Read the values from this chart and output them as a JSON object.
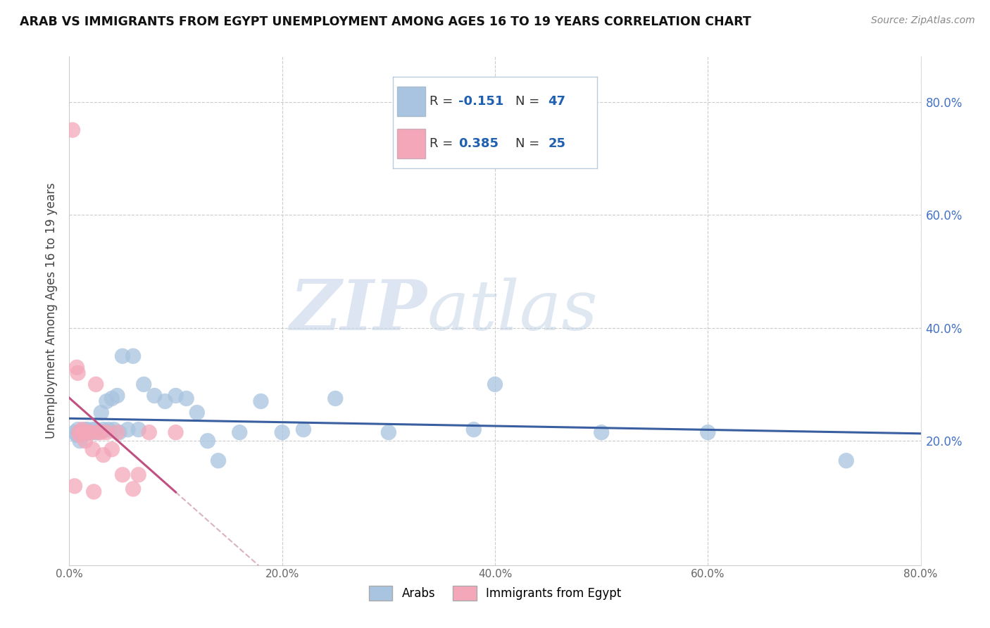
{
  "title": "ARAB VS IMMIGRANTS FROM EGYPT UNEMPLOYMENT AMONG AGES 16 TO 19 YEARS CORRELATION CHART",
  "source": "Source: ZipAtlas.com",
  "ylabel": "Unemployment Among Ages 16 to 19 years",
  "xlim": [
    0.0,
    0.8
  ],
  "ylim": [
    -0.02,
    0.88
  ],
  "xticks": [
    0.0,
    0.2,
    0.4,
    0.6,
    0.8
  ],
  "yticks": [
    0.2,
    0.4,
    0.6,
    0.8
  ],
  "xticklabels": [
    "0.0%",
    "20.0%",
    "40.0%",
    "60.0%",
    "80.0%"
  ],
  "yticklabels": [
    "20.0%",
    "40.0%",
    "60.0%",
    "80.0%"
  ],
  "arab_color": "#a8c4e0",
  "egypt_color": "#f4a7b9",
  "arab_line_color": "#3a5fa0",
  "egypt_line_color": "#c05080",
  "egypt_line_dashed_color": "#d0a0b0",
  "watermark_zip": "ZIP",
  "watermark_atlas": "atlas",
  "watermark_color": "#ccd9e8",
  "background_color": "#ffffff",
  "grid_color": "#cccccc",
  "legend_box_color": "#f0f4f8",
  "legend_border_color": "#bbccdd",
  "tick_color": "#4472c4",
  "arab_x": [
    0.005,
    0.007,
    0.008,
    0.009,
    0.01,
    0.012,
    0.013,
    0.015,
    0.015,
    0.017,
    0.018,
    0.02,
    0.022,
    0.023,
    0.025,
    0.027,
    0.03,
    0.032,
    0.035,
    0.037,
    0.04,
    0.042,
    0.045,
    0.047,
    0.05,
    0.055,
    0.06,
    0.065,
    0.07,
    0.08,
    0.09,
    0.1,
    0.11,
    0.12,
    0.13,
    0.14,
    0.16,
    0.18,
    0.2,
    0.22,
    0.25,
    0.3,
    0.38,
    0.4,
    0.5,
    0.6,
    0.73
  ],
  "arab_y": [
    0.215,
    0.21,
    0.22,
    0.215,
    0.2,
    0.215,
    0.215,
    0.215,
    0.22,
    0.22,
    0.215,
    0.215,
    0.22,
    0.215,
    0.22,
    0.215,
    0.25,
    0.22,
    0.27,
    0.22,
    0.275,
    0.22,
    0.28,
    0.215,
    0.35,
    0.22,
    0.35,
    0.22,
    0.3,
    0.28,
    0.27,
    0.28,
    0.275,
    0.25,
    0.2,
    0.165,
    0.215,
    0.27,
    0.215,
    0.22,
    0.275,
    0.215,
    0.22,
    0.3,
    0.215,
    0.215,
    0.165
  ],
  "egypt_x": [
    0.003,
    0.005,
    0.007,
    0.008,
    0.009,
    0.01,
    0.012,
    0.013,
    0.015,
    0.018,
    0.02,
    0.022,
    0.023,
    0.025,
    0.027,
    0.03,
    0.032,
    0.035,
    0.04,
    0.045,
    0.05,
    0.06,
    0.065,
    0.075,
    0.1
  ],
  "egypt_y": [
    0.75,
    0.12,
    0.33,
    0.32,
    0.215,
    0.21,
    0.22,
    0.215,
    0.2,
    0.215,
    0.215,
    0.185,
    0.11,
    0.3,
    0.215,
    0.215,
    0.175,
    0.215,
    0.185,
    0.215,
    0.14,
    0.115,
    0.14,
    0.215,
    0.215
  ]
}
